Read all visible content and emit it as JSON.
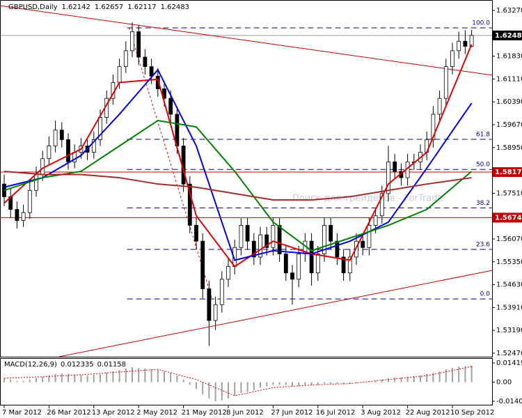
{
  "chart_data": [
    {
      "type": "candlestick",
      "symbol": "GBPUSD,Daily",
      "watermark": "Поиск для трейдеров - ForTrade",
      "categories": [
        "7 Mar 2012",
        null,
        null,
        null,
        null,
        null,
        null,
        "26 Mar 2012",
        null,
        null,
        null,
        null,
        null,
        null,
        "13 Apr 2012",
        null,
        null,
        null,
        null,
        null,
        null,
        "2 May 2012",
        null,
        null,
        null,
        null,
        null,
        null,
        "21 May 2012",
        null,
        null,
        null,
        null,
        null,
        null,
        "8 Jun 2012",
        null,
        null,
        null,
        null,
        null,
        null,
        "27 Jun 2012",
        null,
        null,
        null,
        null,
        null,
        null,
        "16 Jul 2012",
        null,
        null,
        null,
        null,
        null,
        null,
        "3 Aug 2012",
        null,
        null,
        null,
        null,
        null,
        null,
        "22 Aug 2012",
        null,
        null,
        null,
        null,
        null,
        null,
        "10 Sep 2012",
        null,
        null,
        null
      ],
      "open": [
        1.578,
        1.574,
        1.57,
        1.5665,
        1.569,
        1.576,
        1.581,
        1.586,
        1.59,
        1.595,
        1.592,
        1.585,
        1.588,
        1.59,
        1.588,
        1.592,
        1.599,
        1.605,
        1.61,
        1.615,
        1.62,
        1.626,
        1.618,
        1.615,
        1.612,
        1.608,
        1.605,
        1.6,
        1.59,
        1.578,
        1.565,
        1.56,
        1.545,
        1.535,
        1.54,
        1.548,
        1.552,
        1.558,
        1.565,
        1.56,
        1.555,
        1.562,
        1.558,
        1.565,
        1.556,
        1.55,
        1.548,
        1.556,
        1.56,
        1.55,
        1.556,
        1.565,
        1.56,
        1.555,
        1.55,
        1.555,
        1.56,
        1.558,
        1.565,
        1.568,
        1.575,
        1.585,
        1.582,
        1.58,
        1.585,
        1.585,
        1.588,
        1.592,
        1.6,
        1.605,
        1.615,
        1.62,
        1.623,
        1.62142
      ],
      "high": [
        1.581,
        1.5765,
        1.5725,
        1.5715,
        1.5785,
        1.5835,
        1.5885,
        1.593,
        1.598,
        1.5975,
        1.594,
        1.5905,
        1.5925,
        1.592,
        1.5945,
        1.6015,
        1.6075,
        1.6125,
        1.6175,
        1.623,
        1.629,
        1.628,
        1.6205,
        1.6175,
        1.6145,
        1.6105,
        1.6075,
        1.6025,
        1.5925,
        1.5805,
        1.5675,
        1.5625,
        1.5475,
        1.5425,
        1.5505,
        1.5545,
        1.5605,
        1.5675,
        1.5675,
        1.5625,
        1.5645,
        1.5645,
        1.5675,
        1.5675,
        1.5585,
        1.5525,
        1.5585,
        1.5625,
        1.5625,
        1.5585,
        1.5675,
        1.5675,
        1.5625,
        1.5575,
        1.5575,
        1.5625,
        1.5625,
        1.5675,
        1.5705,
        1.5775,
        1.59,
        1.5875,
        1.5845,
        1.5875,
        1.5875,
        1.5905,
        1.5945,
        1.6025,
        1.6075,
        1.6175,
        1.6225,
        1.626,
        1.6265,
        1.62657
      ],
      "low": [
        1.571,
        1.5675,
        1.564,
        1.5645,
        1.567,
        1.574,
        1.579,
        1.584,
        1.588,
        1.5895,
        1.5825,
        1.583,
        1.586,
        1.5855,
        1.586,
        1.59,
        1.597,
        1.603,
        1.608,
        1.613,
        1.618,
        1.6155,
        1.6125,
        1.6095,
        1.6055,
        1.6025,
        1.5975,
        1.5875,
        1.5755,
        1.5625,
        1.5575,
        1.542,
        1.527,
        1.532,
        1.5375,
        1.5455,
        1.5495,
        1.5555,
        1.5575,
        1.5525,
        1.5525,
        1.5555,
        1.5555,
        1.5535,
        1.5475,
        1.54,
        1.5455,
        1.5535,
        1.546,
        1.5475,
        1.5535,
        1.5575,
        1.5525,
        1.5475,
        1.5475,
        1.5525,
        1.5555,
        1.5555,
        1.5625,
        1.5655,
        1.5725,
        1.5795,
        1.5775,
        1.5775,
        1.5825,
        1.5825,
        1.5855,
        1.5895,
        1.5975,
        1.6025,
        1.6125,
        1.6175,
        1.619,
        1.62117
      ],
      "close": [
        1.574,
        1.57,
        1.5665,
        1.569,
        1.576,
        1.581,
        1.586,
        1.59,
        1.595,
        1.592,
        1.585,
        1.588,
        1.59,
        1.588,
        1.592,
        1.599,
        1.605,
        1.61,
        1.615,
        1.62,
        1.626,
        1.618,
        1.615,
        1.612,
        1.608,
        1.605,
        1.6,
        1.59,
        1.578,
        1.565,
        1.56,
        1.545,
        1.535,
        1.54,
        1.548,
        1.552,
        1.558,
        1.565,
        1.56,
        1.555,
        1.562,
        1.558,
        1.565,
        1.556,
        1.55,
        1.548,
        1.556,
        1.56,
        1.55,
        1.556,
        1.565,
        1.56,
        1.555,
        1.55,
        1.555,
        1.56,
        1.558,
        1.565,
        1.568,
        1.575,
        1.585,
        1.582,
        1.58,
        1.585,
        1.585,
        1.588,
        1.592,
        1.6,
        1.605,
        1.615,
        1.62,
        1.623,
        1.6214,
        1.62483
      ],
      "series": [
        {
          "color": "#e00000",
          "x": [
            0,
            6,
            12,
            18,
            24,
            30,
            36,
            42,
            48,
            54,
            60,
            66,
            73
          ],
          "values": [
            1.572,
            1.583,
            1.589,
            1.61,
            1.611,
            1.568,
            1.552,
            1.56,
            1.556,
            1.554,
            1.578,
            1.588,
            1.622
          ]
        },
        {
          "color": "#0000e0",
          "x": [
            0,
            6,
            12,
            18,
            24,
            30,
            36,
            42,
            48,
            54,
            60,
            66,
            73
          ],
          "values": [
            1.577,
            1.58,
            1.587,
            1.6,
            1.614,
            1.59,
            1.554,
            1.557,
            1.556,
            1.56,
            1.566,
            1.583,
            1.6035
          ]
        },
        {
          "color": "#008000",
          "x": [
            0,
            6,
            12,
            18,
            24,
            30,
            36,
            42,
            48,
            54,
            60,
            66,
            73
          ],
          "values": [
            1.576,
            1.58,
            1.582,
            1.59,
            1.598,
            1.596,
            1.582,
            1.566,
            1.557,
            1.561,
            1.565,
            1.57,
            1.582
          ]
        },
        {
          "color": "#a52a2a",
          "x": [
            0,
            6,
            12,
            18,
            24,
            30,
            36,
            42,
            48,
            54,
            60,
            66,
            73
          ],
          "values": [
            1.582,
            1.581,
            1.581,
            1.58,
            1.578,
            1.577,
            1.575,
            1.573,
            1.573,
            1.574,
            1.576,
            1.578,
            1.58
          ]
        }
      ],
      "trendlines": [
        {
          "x": [
            -0.65,
            76.2
          ],
          "values": [
            1.6342,
            1.6123
          ]
        },
        {
          "x": [
            8.6,
            76.2
          ],
          "values": [
            1.5236,
            1.5508
          ]
        }
      ],
      "fib_line": {
        "x": [
          19.5,
          32.5
        ],
        "values": [
          1.6272,
          1.5416
        ]
      },
      "fib_start": 19.2,
      "fib_levels": [
        {
          "label": "100.0",
          "value": 1.6272
        },
        {
          "label": "61.8",
          "value": 1.5921
        },
        {
          "label": "50.0",
          "value": 1.5826
        },
        {
          "label": "38.2",
          "value": 1.5705
        },
        {
          "label": "23.6",
          "value": 1.5574
        },
        {
          "label": "0.0",
          "value": 1.5418
        }
      ],
      "levels": [
        1.58177,
        1.56741
      ],
      "level_color": "#c00000",
      "price_line": 1.62483,
      "ylim": [
        1.5236,
        1.63599
      ],
      "yticks": [
        {
          "value": 1.6327,
          "label": "1.63270"
        },
        {
          "value": 1.6183,
          "label": "1.61830"
        },
        {
          "value": 1.6111,
          "label": "1.61110"
        },
        {
          "value": 1.6039,
          "label": "1.60390"
        },
        {
          "value": 1.5967,
          "label": "1.59670"
        },
        {
          "value": 1.5895,
          "label": "1.58950"
        },
        {
          "value": 1.5751,
          "label": "1.57510"
        },
        {
          "value": 1.5607,
          "label": "1.56070"
        },
        {
          "value": 1.5535,
          "label": "1.55350"
        },
        {
          "value": 1.5463,
          "label": "1.54630"
        },
        {
          "value": 1.5391,
          "label": "1.53910"
        },
        {
          "value": 1.5319,
          "label": "1.53190"
        },
        {
          "value": 1.5247,
          "label": "1.52470"
        }
      ]
    },
    {
      "type": "macd",
      "title": "MACD(12,26,9)",
      "values": [
        0.003,
        0.002,
        0.001,
        0.001,
        0.002,
        0.003,
        0.004,
        0.005,
        0.006,
        0.0065,
        0.006,
        0.0055,
        0.0055,
        0.005,
        0.0055,
        0.006,
        0.007,
        0.008,
        0.009,
        0.01,
        0.011,
        0.0105,
        0.01,
        0.0095,
        0.009,
        0.008,
        0.007,
        0.005,
        0.002,
        -0.002,
        -0.005,
        -0.009,
        -0.012,
        -0.014,
        -0.0135,
        -0.012,
        -0.01,
        -0.008,
        -0.007,
        -0.006,
        -0.004,
        -0.003,
        -0.002,
        -0.002,
        -0.002,
        -0.003,
        -0.003,
        -0.002,
        -0.002,
        -0.002,
        -0.001,
        -0.001,
        -0.001,
        -0.0015,
        -0.001,
        -0.0005,
        0,
        0.0005,
        0.001,
        0.002,
        0.003,
        0.0035,
        0.0035,
        0.004,
        0.0045,
        0.005,
        0.006,
        0.007,
        0.008,
        0.0095,
        0.0105,
        0.0115,
        0.0118,
        0.012335
      ],
      "signal": {
        "color": "#e00000",
        "x": [
          0,
          6,
          12,
          18,
          24,
          30,
          36,
          42,
          48,
          54,
          60,
          66,
          73
        ],
        "values": [
          0.003,
          0.004,
          0.0055,
          0.0075,
          0.0095,
          0.002,
          -0.01,
          -0.004,
          -0.002,
          -0.001,
          0.002,
          0.0048,
          0.01158
        ]
      },
      "ylim": [
        -0.01406,
        0.014191
      ],
      "yticks": [
        0.014191,
        {
          "value": 0,
          "label": "0.00"
        },
        {
          "value": -0.01406,
          "label": "-0.014060"
        }
      ]
    }
  ]
}
